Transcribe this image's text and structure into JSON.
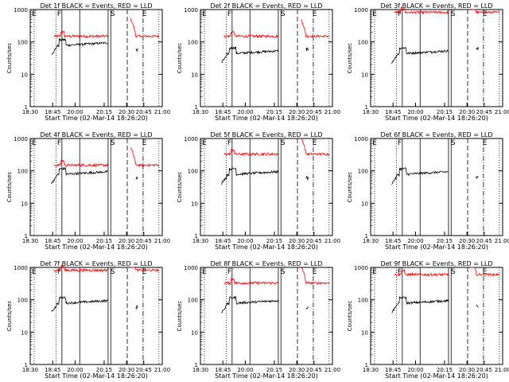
{
  "figure": {
    "x_title": "Start Time (02-Mar-14 18:26:20)",
    "y_title": "Counts/sec",
    "x_ticks": [
      "18:30",
      "18:45",
      "20:00",
      "20:15",
      "20:30",
      "20:45",
      "21:00"
    ],
    "y_ticks": [
      "1",
      "10",
      "100",
      "1000"
    ],
    "colors": {
      "events": "#000000",
      "lld": "#ff0000",
      "axes": "#000000"
    }
  },
  "chart_data": [
    {
      "type": "line",
      "title": "Det 1f BLACK = Events, RED = LLD",
      "lld": "mid",
      "events": "mid",
      "xlabel": "Start Time (02-Mar-14 18:26:20)",
      "ylabel": "Counts/sec",
      "ylim": [
        1,
        1000
      ],
      "yscale": "log",
      "markers": [
        "E",
        "F",
        "S",
        "E"
      ]
    },
    {
      "type": "line",
      "title": "Det 2f BLACK = Events, RED = LLD",
      "lld": "mid",
      "events": "low",
      "xlabel": "Start Time (02-Mar-14 18:26:20)",
      "ylabel": "Counts/sec",
      "ylim": [
        1,
        1000
      ],
      "yscale": "log",
      "markers": [
        "E",
        "F",
        "S",
        "E"
      ]
    },
    {
      "type": "line",
      "title": "Det 3f BLACK = Events, RED = LLD",
      "lld": "high",
      "events": "low",
      "xlabel": "Start Time (02-Mar-14 18:26:20)",
      "ylabel": "Counts/sec",
      "ylim": [
        1,
        1000
      ],
      "yscale": "log",
      "markers": [
        "E",
        "F",
        "S",
        "E"
      ]
    },
    {
      "type": "line",
      "title": "Det 4f BLACK = Events, RED = LLD",
      "lld": "mid",
      "events": "mid",
      "xlabel": "Start Time (02-Mar-14 18:26:20)",
      "ylabel": "Counts/sec",
      "ylim": [
        1,
        1000
      ],
      "yscale": "log",
      "markers": [
        "E",
        "F",
        "S",
        "E"
      ]
    },
    {
      "type": "line",
      "title": "Det 5f BLACK = Events, RED = LLD",
      "lld": "midhigh",
      "events": "mid",
      "xlabel": "Start Time (02-Mar-14 18:26:20)",
      "ylabel": "Counts/sec",
      "ylim": [
        1,
        1000
      ],
      "yscale": "log",
      "markers": [
        "E",
        "F",
        "S",
        "E"
      ]
    },
    {
      "type": "line",
      "title": "Det 6f BLACK = Events, RED = LLD",
      "lld": "none",
      "events": "mid",
      "xlabel": "Start Time (02-Mar-14 18:26:20)",
      "ylabel": "Counts/sec",
      "ylim": [
        1,
        1000
      ],
      "yscale": "log",
      "markers": [
        "E",
        "F",
        "S",
        "E"
      ]
    },
    {
      "type": "line",
      "title": "Det 7f BLACK = Events, RED = LLD",
      "lld": "high",
      "events": "mid",
      "xlabel": "Start Time (02-Mar-14 18:26:20)",
      "ylabel": "Counts/sec",
      "ylim": [
        1,
        1000
      ],
      "yscale": "log",
      "markers": [
        "E",
        "F",
        "S",
        "E"
      ]
    },
    {
      "type": "line",
      "title": "Det 8f BLACK = Events, RED = LLD",
      "lld": "midhigh",
      "events": "mid",
      "xlabel": "Start Time (02-Mar-14 18:26:20)",
      "ylabel": "Counts/sec",
      "ylim": [
        1,
        1000
      ],
      "yscale": "log",
      "markers": [
        "E",
        "F",
        "S",
        "E"
      ]
    },
    {
      "type": "line",
      "title": "Det 9f BLACK = Events, RED = LLD",
      "lld": "highmid",
      "events": "mid",
      "xlabel": "Start Time (02-Mar-14 18:26:20)",
      "ylabel": "Counts/sec",
      "ylim": [
        1,
        1000
      ],
      "yscale": "log",
      "markers": [
        "E",
        "F",
        "S",
        "E"
      ]
    }
  ]
}
